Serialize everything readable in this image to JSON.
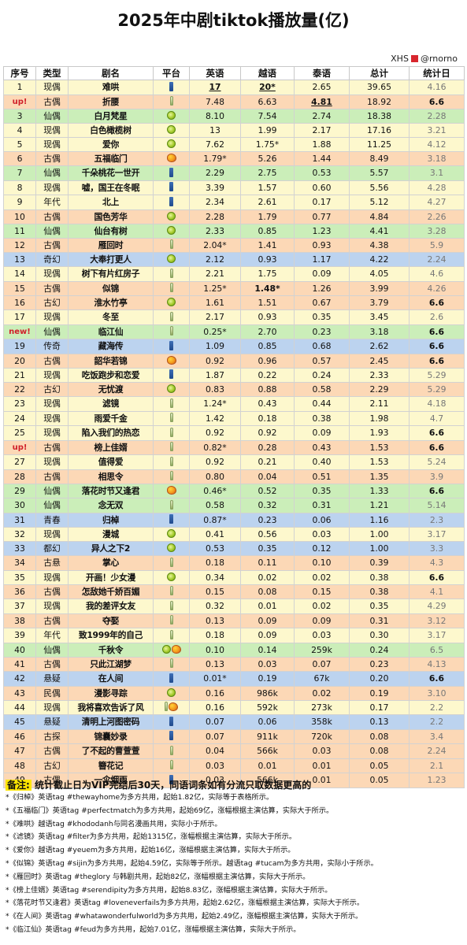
{
  "title": "2025年中剧tiktok播放量(亿)",
  "source": {
    "brand": "XHS",
    "handle": "@rnorno"
  },
  "header": [
    "序号",
    "类型",
    "剧名",
    "平台",
    "英语",
    "越语",
    "泰语",
    "总计",
    "统计日"
  ],
  "rows": [
    {
      "rank": "1",
      "genre": "现偶",
      "title": "难哄",
      "platforms": [
        "jeans"
      ],
      "en": "17",
      "vi": "20*",
      "th": "2.65",
      "total": "39.65",
      "date": "4.16",
      "color": "yellow",
      "fmt": {
        "en": "u",
        "vi": "u"
      }
    },
    {
      "rank": "up!",
      "genre": "古偶",
      "title": "折腰",
      "platforms": [
        "bottle"
      ],
      "en": "7.48",
      "vi": "6.63",
      "th": "4.81",
      "total": "18.92",
      "date": "6.6",
      "color": "orange",
      "fmt": {
        "th": "u"
      },
      "rankHl": true,
      "dateBold": true
    },
    {
      "rank": "3",
      "genre": "仙偶",
      "title": "白月梵星",
      "platforms": [
        "lime"
      ],
      "en": "8.10",
      "vi": "7.54",
      "th": "2.74",
      "total": "18.38",
      "date": "2.28",
      "color": "green"
    },
    {
      "rank": "4",
      "genre": "现偶",
      "title": "白色橄榄树",
      "platforms": [
        "lime"
      ],
      "en": "13",
      "vi": "1.99",
      "th": "2.17",
      "total": "17.16",
      "date": "3.21",
      "color": "yellow"
    },
    {
      "rank": "5",
      "genre": "现偶",
      "title": "爱你",
      "platforms": [
        "lime"
      ],
      "en": "7.62",
      "vi": "1.75*",
      "th": "1.88",
      "total": "11.25",
      "date": "4.12",
      "color": "yellow"
    },
    {
      "rank": "6",
      "genre": "古偶",
      "title": "五福临门",
      "platforms": [
        "mango"
      ],
      "en": "1.79*",
      "th": "1.44",
      "vi": "5.26",
      "total": "8.49",
      "date": "3.18",
      "color": "orange"
    },
    {
      "rank": "7",
      "genre": "仙偶",
      "title": "千朵桃花一世开",
      "platforms": [
        "jeans"
      ],
      "en": "2.29",
      "vi": "2.75",
      "th": "0.53",
      "total": "5.57",
      "date": "3.1",
      "color": "green"
    },
    {
      "rank": "8",
      "genre": "现偶",
      "title": "嘘，国王在冬眠",
      "platforms": [
        "jeans"
      ],
      "en": "3.39",
      "vi": "1.57",
      "th": "0.60",
      "total": "5.56",
      "date": "4.28",
      "color": "yellow"
    },
    {
      "rank": "9",
      "genre": "年代",
      "title": "北上",
      "platforms": [
        "jeans"
      ],
      "en": "2.34",
      "vi": "2.61",
      "th": "0.17",
      "total": "5.12",
      "date": "4.27",
      "color": "yellow"
    },
    {
      "rank": "10",
      "genre": "古偶",
      "title": "国色芳华",
      "platforms": [
        "lime"
      ],
      "en": "2.28",
      "vi": "1.79",
      "th": "0.77",
      "total": "4.84",
      "date": "2.26",
      "color": "orange"
    },
    {
      "rank": "11",
      "genre": "仙偶",
      "title": "仙台有树",
      "platforms": [
        "lime"
      ],
      "en": "2.33",
      "vi": "0.85",
      "th": "1.23",
      "total": "4.41",
      "date": "3.28",
      "color": "green"
    },
    {
      "rank": "12",
      "genre": "古偶",
      "title": "雁回时",
      "platforms": [
        "bottle"
      ],
      "en": "2.04*",
      "vi": "1.41",
      "th": "0.93",
      "total": "4.38",
      "date": "5.9",
      "color": "orange"
    },
    {
      "rank": "13",
      "genre": "奇幻",
      "title": "大奉打更人",
      "platforms": [
        "lime"
      ],
      "en": "2.12",
      "vi": "0.93",
      "th": "1.17",
      "total": "4.22",
      "date": "2.24",
      "color": "blue"
    },
    {
      "rank": "14",
      "genre": "现偶",
      "title": "树下有片红房子",
      "platforms": [
        "bottle"
      ],
      "en": "2.21",
      "vi": "1.75",
      "th": "0.09",
      "total": "4.05",
      "date": "4.6",
      "color": "yellow"
    },
    {
      "rank": "15",
      "genre": "古偶",
      "title": "似锦",
      "platforms": [
        "bottle"
      ],
      "en": "1.25*",
      "vi": "1.48*",
      "th": "1.26",
      "total": "3.99",
      "date": "4.26",
      "color": "orange",
      "fmt": {
        "vi": "b"
      }
    },
    {
      "rank": "16",
      "genre": "古幻",
      "title": "淮水竹亭",
      "platforms": [
        "lime"
      ],
      "en": "1.61",
      "vi": "1.51",
      "th": "0.67",
      "total": "3.79",
      "date": "6.6",
      "color": "orange",
      "dateBold": true
    },
    {
      "rank": "17",
      "genre": "现偶",
      "title": "冬至",
      "platforms": [
        "bottle"
      ],
      "en": "2.17",
      "vi": "0.93",
      "th": "0.35",
      "total": "3.45",
      "date": "2.6",
      "color": "yellow"
    },
    {
      "rank": "new!",
      "genre": "仙偶",
      "title": "临江仙",
      "platforms": [
        "bottle"
      ],
      "en": "0.25*",
      "vi": "2.70",
      "th": "0.23",
      "total": "3.18",
      "date": "6.6",
      "color": "green",
      "rankNew": true,
      "dateBold": true
    },
    {
      "rank": "19",
      "genre": "传奇",
      "title": "藏海传",
      "platforms": [
        "jeans"
      ],
      "en": "1.09",
      "vi": "0.85",
      "th": "0.68",
      "total": "2.62",
      "date": "6.6",
      "color": "blue",
      "dateBold": true
    },
    {
      "rank": "20",
      "genre": "古偶",
      "title": "韶华若锦",
      "platforms": [
        "mango"
      ],
      "en": "0.92",
      "vi": "0.96",
      "th": "0.57",
      "total": "2.45",
      "date": "6.6",
      "color": "orange",
      "dateBold": true
    },
    {
      "rank": "21",
      "genre": "现偶",
      "title": "吃饭跑步和恋爱",
      "platforms": [
        "jeans"
      ],
      "en": "1.87",
      "vi": "0.22",
      "th": "0.24",
      "total": "2.33",
      "date": "5.29",
      "color": "yellow"
    },
    {
      "rank": "22",
      "genre": "古幻",
      "title": "无忧渡",
      "platforms": [
        "lime"
      ],
      "en": "0.83",
      "vi": "0.88",
      "th": "0.58",
      "total": "2.29",
      "date": "5.29",
      "color": "orange"
    },
    {
      "rank": "23",
      "genre": "现偶",
      "title": "滤镜",
      "platforms": [
        "bottle"
      ],
      "en": "1.24*",
      "vi": "0.43",
      "th": "0.44",
      "total": "2.11",
      "date": "4.18",
      "color": "yellow"
    },
    {
      "rank": "24",
      "genre": "现偶",
      "title": "雨爱千金",
      "platforms": [
        "bottle"
      ],
      "en": "1.42",
      "vi": "0.18",
      "th": "0.38",
      "total": "1.98",
      "date": "4.7",
      "color": "yellow"
    },
    {
      "rank": "25",
      "genre": "现偶",
      "title": "陷入我们的热恋",
      "platforms": [
        "bottle"
      ],
      "en": "0.92",
      "vi": "0.92",
      "th": "0.09",
      "total": "1.93",
      "date": "6.6",
      "color": "yellow",
      "dateBold": true
    },
    {
      "rank": "up!",
      "genre": "古偶",
      "title": "榜上佳婿",
      "platforms": [
        "bottle"
      ],
      "en": "0.82*",
      "vi": "0.28",
      "th": "0.43",
      "total": "1.53",
      "date": "6.6",
      "color": "orange",
      "rankHl": true,
      "dateBold": true
    },
    {
      "rank": "27",
      "genre": "现偶",
      "title": "值得爱",
      "platforms": [
        "bottle"
      ],
      "en": "0.92",
      "vi": "0.21",
      "th": "0.40",
      "total": "1.53",
      "date": "5.24",
      "color": "yellow"
    },
    {
      "rank": "28",
      "genre": "古偶",
      "title": "相思令",
      "platforms": [
        "bottle"
      ],
      "en": "0.80",
      "vi": "0.04",
      "th": "0.51",
      "total": "1.35",
      "date": "3.9",
      "color": "orange"
    },
    {
      "rank": "29",
      "genre": "仙偶",
      "title": "落花时节又逢君",
      "platforms": [
        "mango"
      ],
      "en": "0.46*",
      "vi": "0.52",
      "th": "0.35",
      "total": "1.33",
      "date": "6.6",
      "color": "green",
      "dateBold": true
    },
    {
      "rank": "30",
      "genre": "仙偶",
      "title": "念无双",
      "platforms": [
        "bottle"
      ],
      "en": "0.58",
      "vi": "0.32",
      "th": "0.31",
      "total": "1.21",
      "date": "5.14",
      "color": "green"
    },
    {
      "rank": "31",
      "genre": "青春",
      "title": "归棹",
      "platforms": [
        "jeans"
      ],
      "en": "0.87*",
      "vi": "0.23",
      "th": "0.06",
      "total": "1.16",
      "date": "2.3",
      "color": "blue"
    },
    {
      "rank": "32",
      "genre": "现偶",
      "title": "漫城",
      "platforms": [
        "lime"
      ],
      "en": "0.41",
      "vi": "0.56",
      "th": "0.03",
      "total": "1.00",
      "date": "3.17",
      "color": "yellow"
    },
    {
      "rank": "33",
      "genre": "都幻",
      "title": "异人之下2",
      "platforms": [
        "lime"
      ],
      "en": "0.53",
      "vi": "0.35",
      "th": "0.12",
      "total": "1.00",
      "date": "3.3",
      "color": "blue"
    },
    {
      "rank": "34",
      "genre": "古悬",
      "title": "掌心",
      "platforms": [
        "bottle"
      ],
      "en": "0.18",
      "vi": "0.11",
      "th": "0.10",
      "total": "0.39",
      "date": "4.3",
      "color": "orange"
    },
    {
      "rank": "35",
      "genre": "现偶",
      "title": "开画！少女漫",
      "platforms": [
        "lime"
      ],
      "en": "0.34",
      "vi": "0.02",
      "th": "0.02",
      "total": "0.38",
      "date": "6.6",
      "color": "yellow",
      "dateBold": true
    },
    {
      "rank": "36",
      "genre": "古偶",
      "title": "怎敌她千娇百媚",
      "platforms": [
        "bottle"
      ],
      "en": "0.15",
      "vi": "0.08",
      "th": "0.15",
      "total": "0.38",
      "date": "4.1",
      "color": "orange"
    },
    {
      "rank": "37",
      "genre": "现偶",
      "title": "我的差评女友",
      "platforms": [
        "bottle"
      ],
      "en": "0.32",
      "vi": "0.01",
      "th": "0.02",
      "total": "0.35",
      "date": "4.29",
      "color": "yellow"
    },
    {
      "rank": "38",
      "genre": "古偶",
      "title": "夺娶",
      "platforms": [
        "bottle"
      ],
      "en": "0.13",
      "vi": "0.09",
      "th": "0.09",
      "total": "0.31",
      "date": "3.12",
      "color": "orange"
    },
    {
      "rank": "39",
      "genre": "年代",
      "title": "致1999年的自己",
      "platforms": [
        "bottle"
      ],
      "en": "0.18",
      "vi": "0.09",
      "th": "0.03",
      "total": "0.30",
      "date": "3.17",
      "color": "yellow"
    },
    {
      "rank": "40",
      "genre": "仙偶",
      "title": "千秋令",
      "platforms": [
        "lime",
        "mango"
      ],
      "en": "0.10",
      "vi": "0.14",
      "th": "259k",
      "total": "0.24",
      "date": "6.5",
      "color": "green"
    },
    {
      "rank": "41",
      "genre": "古偶",
      "title": "只此江湖梦",
      "platforms": [
        "bottle"
      ],
      "en": "0.13",
      "vi": "0.03",
      "th": "0.07",
      "total": "0.23",
      "date": "4.13",
      "color": "orange"
    },
    {
      "rank": "42",
      "genre": "悬疑",
      "title": "在人间",
      "platforms": [
        "jeans"
      ],
      "en": "0.01*",
      "vi": "0.19",
      "th": "67k",
      "total": "0.20",
      "date": "6.6",
      "color": "blue",
      "dateBold": true
    },
    {
      "rank": "43",
      "genre": "民偶",
      "title": "漫影寻踪",
      "platforms": [
        "lime"
      ],
      "en": "0.16",
      "vi": "986k",
      "th": "0.02",
      "total": "0.19",
      "date": "3.10",
      "color": "orange"
    },
    {
      "rank": "44",
      "genre": "现偶",
      "title": "我将喜欢告诉了风",
      "platforms": [
        "bottle",
        "mango"
      ],
      "en": "0.16",
      "vi": "592k",
      "th": "273k",
      "total": "0.17",
      "date": "2.2",
      "color": "yellow"
    },
    {
      "rank": "45",
      "genre": "悬疑",
      "title": "清明上河图密码",
      "platforms": [
        "jeans"
      ],
      "en": "0.07",
      "vi": "0.06",
      "th": "358k",
      "total": "0.13",
      "date": "2.2",
      "color": "blue"
    },
    {
      "rank": "46",
      "genre": "古探",
      "title": "锦囊妙录",
      "platforms": [
        "jeans"
      ],
      "en": "0.07",
      "vi": "911k",
      "th": "720k",
      "total": "0.08",
      "date": "3.4",
      "color": "orange"
    },
    {
      "rank": "47",
      "genre": "古偶",
      "title": "了不起的曹萱萱",
      "platforms": [
        "bottle"
      ],
      "en": "0.04",
      "vi": "566k",
      "th": "0.03",
      "total": "0.08",
      "date": "2.24",
      "color": "orange"
    },
    {
      "rank": "48",
      "genre": "古幻",
      "title": "簪花记",
      "platforms": [
        "bottle"
      ],
      "en": "0.03",
      "vi": "0.01",
      "th": "0.01",
      "total": "0.05",
      "date": "2.1",
      "color": "orange"
    },
    {
      "rank": "49",
      "genre": "古偶",
      "title": "一伞烟雨",
      "platforms": [
        "jeans"
      ],
      "en": "0.03",
      "vi": "566k",
      "th": "0.01",
      "total": "0.05",
      "date": "1.23",
      "color": "orange"
    }
  ],
  "notes": {
    "label": "备注:",
    "headline": "统计截止日为VIP完结后30天，同语词条如有分流只取数据更高的",
    "lines": [
      "*《归棹》英语tag #thewayhome为多方共用，起始1.82亿，实际等于表格所示。",
      "*《五福临门》英语tag #perfectmatch为多方共用，起始69亿，涨幅根据主演估算，实际大于所示。",
      "*《难哄》越语tag #khododanh与同名漫画共用，实际小于所示。",
      "*《滤镜》英语tag #filter为多方共用，起始1315亿，涨幅根据主演估算，实际大于所示。",
      "*《爱你》越语tag #yeuem为多方共用，起始16亿，涨幅根据主演估算，实际大于所示。",
      "*《似锦》英语tag #sijin为多方共用，起始4.59亿，实际等于所示。越语tag #tucam为多方共用，实际小于所示。",
      "*《雁回时》英语tag #theglory 与韩剧共用，起始82亿，涨幅根据主演估算，实际大于所示。",
      "*《榜上佳婿》英语tag #serendipity为多方共用，起始8.83亿，涨幅根据主演估算，实际大于所示。",
      "*《落花时节又逢君》英语tag #loveneverfails为多方共用，起始2.62亿，涨幅根据主演估算，实际大于所示。",
      "*《在人间》英语tag #whatawonderfulworld为多方共用，起始2.49亿，涨幅根据主演估算，实际大于所示。",
      "*《临江仙》英语tag #feud为多方共用，起始7.01亿，涨幅根据主演估算，实际大于所示。"
    ]
  }
}
